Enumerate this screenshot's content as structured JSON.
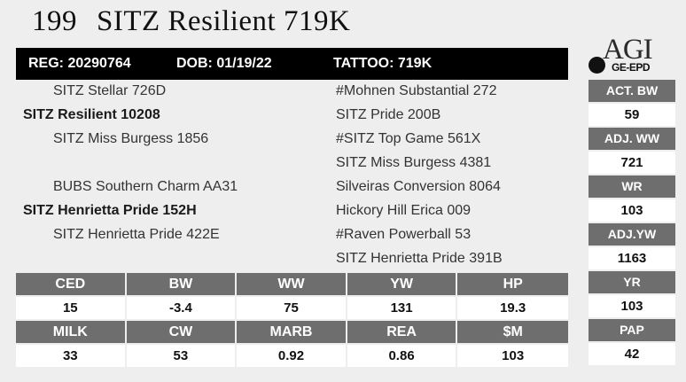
{
  "header": {
    "lot": "199",
    "name": "SITZ Resilient 719K",
    "reg": "REG: 20290764",
    "dob": "DOB: 01/19/22",
    "tattoo": "TATTOO: 719K"
  },
  "logo": {
    "main": "AGI",
    "sub": "GE-EPD"
  },
  "pedigree": {
    "left": [
      "SITZ Stellar 726D",
      "SITZ Resilient 10208",
      "SITZ Miss Burgess 1856",
      "BUBS Southern Charm AA31",
      "SITZ Henrietta Pride 152H",
      "SITZ Henrietta Pride 422E"
    ],
    "right": [
      "#Mohnen Substantial 272",
      "SITZ Pride 200B",
      "#SITZ Top Game 561X",
      "SITZ Miss Burgess 4381",
      "Silveiras Conversion 8064",
      "Hickory Hill Erica 009",
      "#Raven Powerball 53",
      "SITZ Henrietta Pride 391B"
    ]
  },
  "side_stats": [
    {
      "label": "ACT. BW",
      "value": "59"
    },
    {
      "label": "ADJ. WW",
      "value": "721"
    },
    {
      "label": "WR",
      "value": "103"
    },
    {
      "label": "ADJ.YW",
      "value": "1163"
    },
    {
      "label": "YR",
      "value": "103"
    },
    {
      "label": "PAP",
      "value": "42"
    }
  ],
  "epd": {
    "row1_headers": [
      "CED",
      "BW",
      "WW",
      "YW",
      "HP"
    ],
    "row1_values": [
      "15",
      "-3.4",
      "75",
      "131",
      "19.3"
    ],
    "row2_headers": [
      "MILK",
      "CW",
      "MARB",
      "REA",
      "$M"
    ],
    "row2_values": [
      "33",
      "53",
      "0.92",
      "0.86",
      "103"
    ]
  }
}
